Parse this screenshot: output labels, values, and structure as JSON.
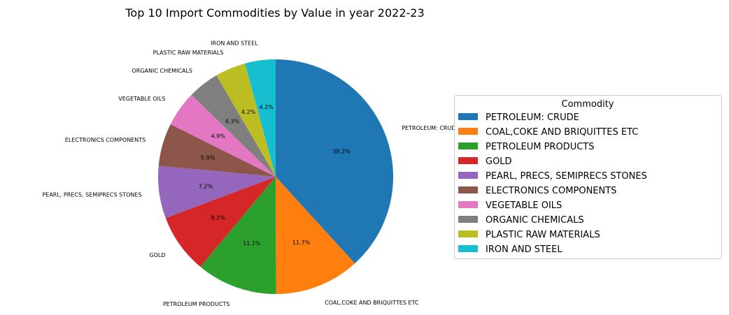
{
  "chart_data": {
    "type": "pie",
    "title": "Top 10 Import Commodities by Value in year 2022-23",
    "legend_title": "Commodity",
    "legend_position": "right",
    "slices": [
      {
        "label": "PETROLEUM: CRUDE",
        "pct_label": "38.2%",
        "value": 38.2,
        "color": "#1f77b4"
      },
      {
        "label": "COAL,COKE AND BRIQUITTES ETC",
        "pct_label": "11.7%",
        "value": 11.7,
        "color": "#ff7f0e"
      },
      {
        "label": "PETROLEUM PRODUCTS",
        "pct_label": "11.1%",
        "value": 11.1,
        "color": "#2ca02c"
      },
      {
        "label": "GOLD",
        "pct_label": "8.2%",
        "value": 8.2,
        "color": "#d62728"
      },
      {
        "label": "PEARL, PRECS, SEMIPRECS STONES",
        "pct_label": "7.2%",
        "value": 7.2,
        "color": "#9467bd"
      },
      {
        "label": "ELECTRONICS COMPONENTS",
        "pct_label": "5.9%",
        "value": 5.9,
        "color": "#8c564b"
      },
      {
        "label": "VEGETABLE OILS",
        "pct_label": "4.9%",
        "value": 4.9,
        "color": "#e377c2"
      },
      {
        "label": "ORGANIC CHEMICALS",
        "pct_label": "4.3%",
        "value": 4.3,
        "color": "#7f7f7f"
      },
      {
        "label": "PLASTIC RAW MATERIALS",
        "pct_label": "4.2%",
        "value": 4.2,
        "color": "#bcbd22"
      },
      {
        "label": "IRON AND STEEL",
        "pct_label": "4.2%",
        "value": 4.2,
        "color": "#17becf"
      }
    ]
  }
}
